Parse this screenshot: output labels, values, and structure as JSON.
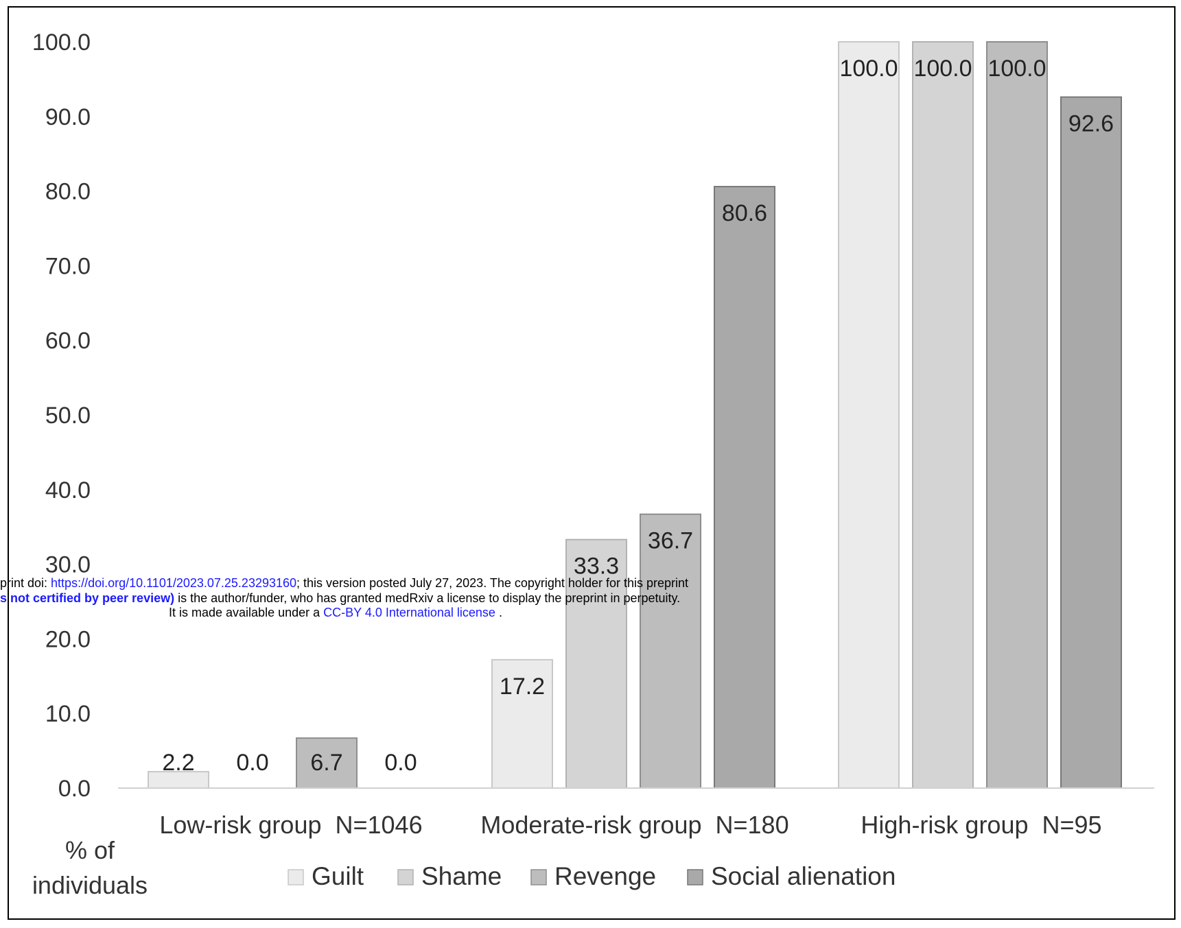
{
  "chart_data": {
    "type": "bar",
    "categories": [
      "Low-risk group  N=1046",
      "Moderate-risk group  N=180",
      "High-risk group  N=95"
    ],
    "series": [
      {
        "name": "Guilt",
        "values": [
          2.2,
          17.2,
          100.0
        ],
        "labels": [
          "2.2",
          "17.2",
          "100.0"
        ],
        "color": "#ebebeb",
        "stroke": "#c8c8c8"
      },
      {
        "name": "Shame",
        "values": [
          0.0,
          33.3,
          100.0
        ],
        "labels": [
          "0.0",
          "33.3",
          "100.0"
        ],
        "color": "#d4d4d4",
        "stroke": "#b2b2b2"
      },
      {
        "name": "Revenge",
        "values": [
          6.7,
          36.7,
          100.0
        ],
        "labels": [
          "6.7",
          "36.7",
          "100.0"
        ],
        "color": "#bdbdbd",
        "stroke": "#8e8e8e"
      },
      {
        "name": "Social alienation",
        "values": [
          0.0,
          80.6,
          92.6
        ],
        "labels": [
          "0.0",
          "80.6",
          "92.6"
        ],
        "color": "#a9a9a9",
        "stroke": "#777777"
      }
    ],
    "yticks": [
      "0.0",
      "10.0",
      "20.0",
      "30.0",
      "40.0",
      "50.0",
      "60.0",
      "70.0",
      "80.0",
      "90.0",
      "100.0"
    ],
    "ylim": [
      0,
      100
    ],
    "ylabel": "% of individuals",
    "ylabel_lines": [
      "% of",
      "individuals"
    ],
    "legend_position": "bottom",
    "grid": false
  },
  "watermark": {
    "line1_a": "print doi: ",
    "line1_link": "https://doi.org/10.1101/2023.07.25.23293160",
    "line1_b": "; this version posted July 27, 2023. The copyright holder for this preprint",
    "line2_bold": "s not certified by peer review)",
    "line2_b": " is the author/funder, who has granted medRxiv a license to display the preprint in perpetuity.",
    "line3_a": "It is made available under a ",
    "line3_link": "CC-BY 4.0 International license",
    "line3_b": " ."
  }
}
